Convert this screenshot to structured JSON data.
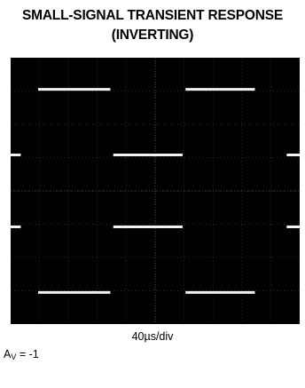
{
  "title_line1": "SMALL-SIGNAL TRANSIENT RESPONSE",
  "title_line2": "(INVERTING)",
  "xlabel": "40µs/div",
  "gain": {
    "symbol": "A",
    "subscript": "V",
    "value": " = -1"
  },
  "chart_data": {
    "type": "line",
    "grid": true,
    "divisions": {
      "x": 10,
      "y": 8
    },
    "xlim": [
      0,
      10
    ],
    "ylim": [
      -4,
      4
    ],
    "series": [
      {
        "x": [
          0,
          0.4,
          0.4,
          1.4,
          1.4,
          3.5,
          3.5,
          6.0,
          6.0,
          8.0,
          8.0,
          9.2,
          9.2,
          10
        ],
        "y": [
          1.08,
          1.08,
          3.05,
          3.05,
          3.05,
          3.05,
          1.08,
          1.08,
          3.05,
          3.05,
          3.05,
          3.05,
          1.08,
          1.08
        ],
        "segments": [
          [
            0,
            0.4
          ],
          [
            1.0,
            3.5
          ],
          [
            4.0,
            6.0
          ],
          [
            6.5,
            8.5
          ],
          [
            9.0,
            10
          ]
        ]
      },
      {
        "x": [
          0,
          10
        ],
        "y": [
          -1.08,
          -3.05
        ],
        "segments": [
          [
            0,
            1.0
          ],
          [
            1.0,
            3.5
          ],
          [
            3.5,
            6.0
          ],
          [
            6.0,
            8.0
          ],
          [
            8.5,
            10
          ]
        ]
      }
    ]
  }
}
